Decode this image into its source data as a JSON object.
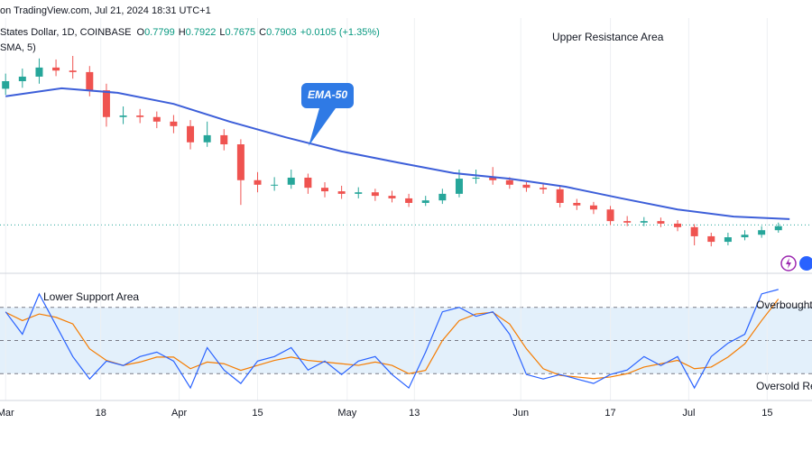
{
  "header": {
    "source": "on TradingView.com, Jul 21, 2024 18:31 UTC+1",
    "symbol": "States Dollar, 1D, COINBASE",
    "ohlc_labels": [
      "O",
      "H",
      "L",
      "C"
    ],
    "ohlc_values": [
      0.7799,
      0.7922,
      0.7675,
      0.7903
    ],
    "change_text": "+0.0105 (+1.35%)",
    "indicator": "SMA, 5)"
  },
  "chart_data": [
    {
      "type": "candlestick",
      "annotations": [
        "Upper Resistance Area"
      ],
      "up_color": "#26a69a",
      "down_color": "#ef5350",
      "xlim": [
        -1,
        144
      ],
      "ylim": [
        0.7,
        1.2
      ],
      "x": [
        0,
        3,
        6,
        9,
        12,
        15,
        18,
        21,
        24,
        27,
        30,
        33,
        36,
        39,
        42,
        45,
        48,
        51,
        54,
        57,
        60,
        63,
        66,
        69,
        72,
        75,
        78,
        81,
        84,
        87,
        90,
        93,
        96,
        99,
        102,
        105,
        108,
        111,
        114,
        117,
        120,
        123,
        126,
        129,
        132,
        135,
        138
      ],
      "open": [
        1.06,
        1.075,
        1.084,
        1.102,
        1.096,
        1.093,
        1.057,
        1.004,
        1.007,
        1.004,
        0.995,
        0.986,
        0.954,
        0.968,
        0.95,
        0.879,
        0.87,
        0.87,
        0.884,
        0.864,
        0.857,
        0.852,
        0.855,
        0.848,
        0.843,
        0.834,
        0.839,
        0.852,
        0.882,
        0.884,
        0.879,
        0.87,
        0.864,
        0.861,
        0.834,
        0.829,
        0.821,
        0.798,
        0.795,
        0.798,
        0.793,
        0.786,
        0.768,
        0.757,
        0.766,
        0.771,
        0.78
      ],
      "high": [
        1.09,
        1.1,
        1.12,
        1.118,
        1.125,
        1.105,
        1.07,
        1.025,
        1.02,
        1.015,
        1.008,
        0.998,
        0.995,
        0.98,
        0.96,
        0.895,
        0.885,
        0.9,
        0.892,
        0.875,
        0.868,
        0.865,
        0.862,
        0.858,
        0.852,
        0.848,
        0.862,
        0.9,
        0.9,
        0.905,
        0.885,
        0.875,
        0.872,
        0.868,
        0.842,
        0.836,
        0.828,
        0.808,
        0.806,
        0.805,
        0.8,
        0.792,
        0.775,
        0.775,
        0.78,
        0.788,
        0.795
      ],
      "low": [
        1.048,
        1.062,
        1.07,
        1.085,
        1.08,
        1.045,
        0.985,
        0.99,
        0.992,
        0.982,
        0.972,
        0.94,
        0.945,
        0.938,
        0.83,
        0.855,
        0.858,
        0.862,
        0.852,
        0.845,
        0.842,
        0.843,
        0.838,
        0.835,
        0.826,
        0.828,
        0.832,
        0.845,
        0.872,
        0.87,
        0.862,
        0.856,
        0.852,
        0.825,
        0.82,
        0.812,
        0.79,
        0.788,
        0.788,
        0.786,
        0.778,
        0.75,
        0.748,
        0.75,
        0.76,
        0.765,
        0.775
      ],
      "close": [
        1.075,
        1.084,
        1.102,
        1.096,
        1.093,
        1.057,
        1.004,
        1.007,
        1.004,
        0.995,
        0.986,
        0.954,
        0.968,
        0.95,
        0.879,
        0.87,
        0.87,
        0.884,
        0.864,
        0.857,
        0.852,
        0.855,
        0.848,
        0.843,
        0.834,
        0.839,
        0.852,
        0.882,
        0.884,
        0.879,
        0.87,
        0.864,
        0.861,
        0.834,
        0.829,
        0.821,
        0.798,
        0.795,
        0.798,
        0.793,
        0.786,
        0.768,
        0.757,
        0.766,
        0.771,
        0.78,
        0.788
      ],
      "series": [
        {
          "name": "EMA-50",
          "color": "#3d5fd9",
          "x": [
            0,
            10,
            20,
            30,
            40,
            50,
            60,
            70,
            80,
            90,
            100,
            110,
            120,
            130,
            140
          ],
          "values": [
            1.045,
            1.061,
            1.052,
            1.03,
            0.995,
            0.964,
            0.936,
            0.914,
            0.893,
            0.882,
            0.866,
            0.843,
            0.821,
            0.807,
            0.802
          ]
        }
      ]
    },
    {
      "type": "rsi",
      "annotations": [
        "Lower Support Area",
        "Overbought",
        "Oversold Re"
      ],
      "xlim": [
        -1,
        144
      ],
      "ylim": [
        16,
        84
      ],
      "levels": [
        70,
        50,
        30
      ],
      "band_color": "#e3f0fb",
      "xticks": [
        {
          "value": 0,
          "label": "Mar"
        },
        {
          "value": 17,
          "label": "18"
        },
        {
          "value": 31,
          "label": "Apr"
        },
        {
          "value": 45,
          "label": "15"
        },
        {
          "value": 61,
          "label": "May"
        },
        {
          "value": 73,
          "label": "13"
        },
        {
          "value": 92,
          "label": "Jun"
        },
        {
          "value": 108,
          "label": "17"
        },
        {
          "value": 122,
          "label": "Jul"
        },
        {
          "value": 136,
          "label": "15"
        }
      ],
      "x": [
        0,
        3,
        6,
        9,
        12,
        15,
        18,
        21,
        24,
        27,
        30,
        33,
        36,
        39,
        42,
        45,
        48,
        51,
        54,
        57,
        60,
        63,
        66,
        69,
        72,
        75,
        78,
        81,
        84,
        87,
        90,
        93,
        96,
        99,
        102,
        105,
        108,
        111,
        114,
        117,
        120,
        123,
        126,
        129,
        132,
        135,
        138
      ],
      "series": [
        {
          "color": "#2962ff",
          "values": [
            67.3,
            53.8,
            78.1,
            59.2,
            40.3,
            26.8,
            37.6,
            34.9,
            40.3,
            43.0,
            37.6,
            21.4,
            45.7,
            32.2,
            24.1,
            37.6,
            40.3,
            45.7,
            32.2,
            37.6,
            29.5,
            37.6,
            40.3,
            29.5,
            21.4,
            43.0,
            67.3,
            70.0,
            64.6,
            67.3,
            53.8,
            29.5,
            26.8,
            29.5,
            26.8,
            24.1,
            29.5,
            32.2,
            40.3,
            34.9,
            40.3,
            21.4,
            40.3,
            48.4,
            53.8,
            78.1,
            80.8
          ]
        },
        {
          "color": "#f57c00",
          "values": [
            67,
            62,
            66,
            64,
            60,
            45,
            38,
            35,
            37,
            40,
            40,
            33,
            37,
            36,
            32,
            35,
            38,
            40,
            38,
            37,
            36,
            35,
            37,
            35,
            30,
            32,
            50,
            62,
            66,
            67,
            60,
            45,
            33,
            29,
            28,
            27,
            28,
            30,
            34,
            36,
            38,
            33,
            34,
            40,
            48,
            62,
            75
          ]
        }
      ]
    }
  ]
}
